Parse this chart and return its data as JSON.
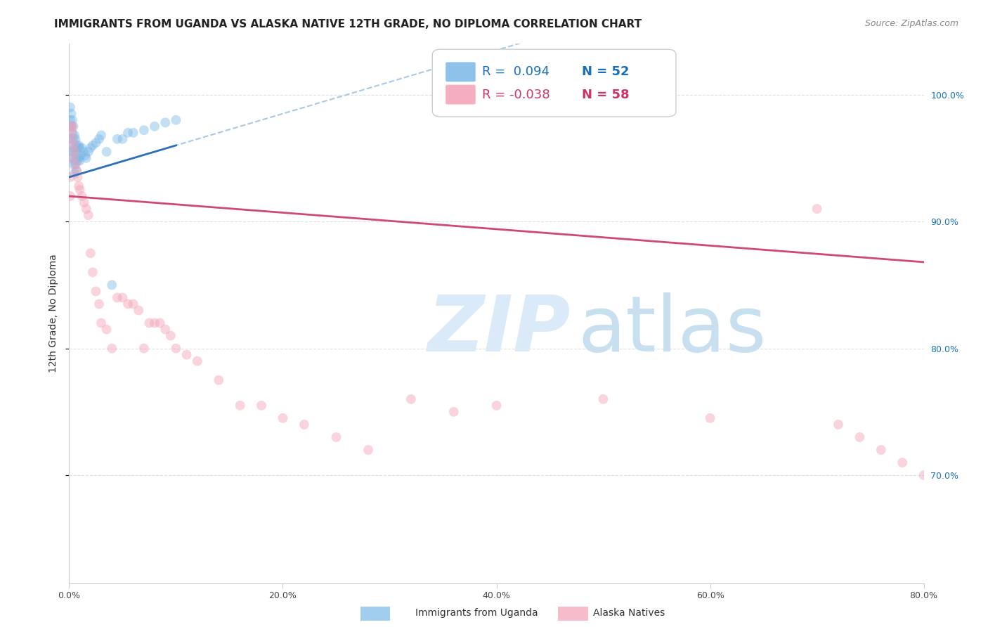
{
  "title": "IMMIGRANTS FROM UGANDA VS ALASKA NATIVE 12TH GRADE, NO DIPLOMA CORRELATION CHART",
  "source": "Source: ZipAtlas.com",
  "ylabel": "12th Grade, No Diploma",
  "xmin": 0.0,
  "xmax": 0.8,
  "ymin": 0.615,
  "ymax": 1.04,
  "ytick_labels": [
    "100.0%",
    "90.0%",
    "80.0%",
    "70.0%"
  ],
  "ytick_values": [
    1.0,
    0.9,
    0.8,
    0.7
  ],
  "xtick_labels": [
    "0.0%",
    "20.0%",
    "40.0%",
    "60.0%",
    "80.0%"
  ],
  "xtick_values": [
    0.0,
    0.2,
    0.4,
    0.6,
    0.8
  ],
  "blue_color": "#7ab8e8",
  "pink_color": "#f4a0b5",
  "blue_line_color": "#2c6fba",
  "pink_line_color": "#d04878",
  "dashed_line_color": "#a8c8e8",
  "background_color": "#ffffff",
  "grid_color": "#e0e0e0",
  "watermark_color": "#daeaf8",
  "legend_r1_color": "#1a6fba",
  "legend_n1_color": "#1a6fba",
  "legend_r2_color": "#cc3366",
  "title_fontsize": 11,
  "source_fontsize": 9,
  "axis_label_fontsize": 10,
  "tick_fontsize": 9,
  "legend_fontsize": 13,
  "marker_size": 100,
  "marker_alpha": 0.45,
  "blue_scatter_x": [
    0.001,
    0.001,
    0.001,
    0.002,
    0.002,
    0.002,
    0.002,
    0.003,
    0.003,
    0.003,
    0.003,
    0.004,
    0.004,
    0.004,
    0.004,
    0.005,
    0.005,
    0.005,
    0.005,
    0.006,
    0.006,
    0.006,
    0.007,
    0.007,
    0.007,
    0.008,
    0.008,
    0.009,
    0.009,
    0.01,
    0.01,
    0.011,
    0.012,
    0.013,
    0.015,
    0.016,
    0.018,
    0.02,
    0.022,
    0.025,
    0.028,
    0.03,
    0.035,
    0.04,
    0.045,
    0.05,
    0.055,
    0.06,
    0.07,
    0.08,
    0.09,
    0.1
  ],
  "blue_scatter_y": [
    0.99,
    0.98,
    0.975,
    0.985,
    0.975,
    0.965,
    0.955,
    0.98,
    0.97,
    0.96,
    0.95,
    0.975,
    0.965,
    0.955,
    0.945,
    0.968,
    0.958,
    0.948,
    0.938,
    0.965,
    0.955,
    0.945,
    0.96,
    0.95,
    0.94,
    0.958,
    0.948,
    0.96,
    0.95,
    0.958,
    0.948,
    0.952,
    0.958,
    0.955,
    0.952,
    0.95,
    0.955,
    0.958,
    0.96,
    0.962,
    0.965,
    0.968,
    0.955,
    0.85,
    0.965,
    0.965,
    0.97,
    0.97,
    0.972,
    0.975,
    0.978,
    0.98
  ],
  "pink_scatter_x": [
    0.001,
    0.001,
    0.002,
    0.002,
    0.003,
    0.003,
    0.004,
    0.004,
    0.005,
    0.006,
    0.007,
    0.008,
    0.009,
    0.01,
    0.012,
    0.014,
    0.016,
    0.018,
    0.02,
    0.022,
    0.025,
    0.028,
    0.03,
    0.035,
    0.04,
    0.045,
    0.05,
    0.055,
    0.06,
    0.065,
    0.07,
    0.075,
    0.08,
    0.085,
    0.09,
    0.095,
    0.1,
    0.11,
    0.12,
    0.14,
    0.16,
    0.18,
    0.2,
    0.22,
    0.25,
    0.28,
    0.32,
    0.36,
    0.4,
    0.5,
    0.6,
    0.7,
    0.72,
    0.74,
    0.76,
    0.78,
    0.8,
    0.82
  ],
  "pink_scatter_y": [
    0.935,
    0.92,
    0.975,
    0.97,
    0.975,
    0.965,
    0.96,
    0.95,
    0.955,
    0.945,
    0.94,
    0.935,
    0.928,
    0.925,
    0.92,
    0.915,
    0.91,
    0.905,
    0.875,
    0.86,
    0.845,
    0.835,
    0.82,
    0.815,
    0.8,
    0.84,
    0.84,
    0.835,
    0.835,
    0.83,
    0.8,
    0.82,
    0.82,
    0.82,
    0.815,
    0.81,
    0.8,
    0.795,
    0.79,
    0.775,
    0.755,
    0.755,
    0.745,
    0.74,
    0.73,
    0.72,
    0.76,
    0.75,
    0.755,
    0.76,
    0.745,
    0.91,
    0.74,
    0.73,
    0.72,
    0.71,
    0.7,
    0.69
  ]
}
